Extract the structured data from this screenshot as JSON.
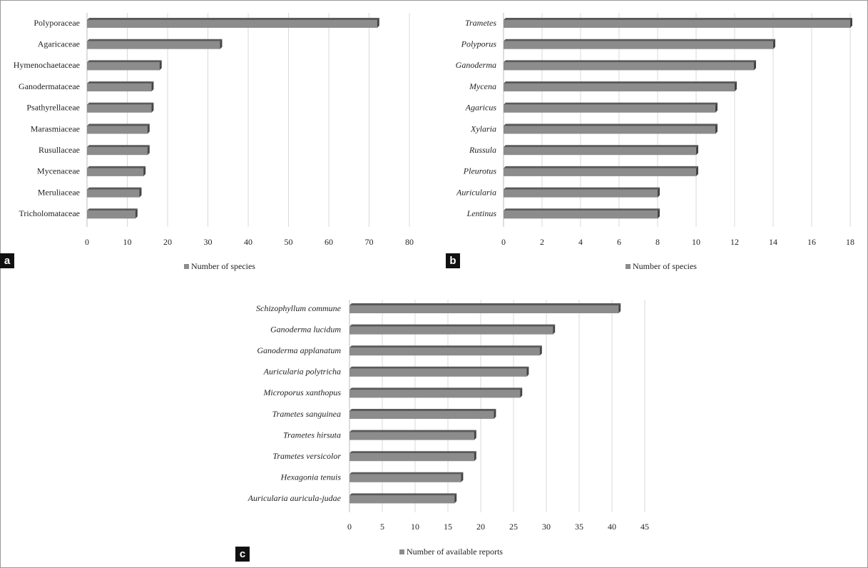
{
  "chart_data": [
    {
      "type": "bar",
      "label": "a",
      "categories": [
        "Polyporaceae",
        "Agaricaceae",
        "Hymenochaetaceae",
        "Ganodermataceae",
        "Psathyrellaceae",
        "Marasmiaceae",
        "Rusullaceae",
        "Mycenaceae",
        "Meruliaceae",
        "Tricholomataceae"
      ],
      "series": [
        {
          "name": "Number of species",
          "color": "#8c8c8c",
          "values": [
            72,
            33,
            18,
            16,
            16,
            15,
            15,
            14,
            13,
            12
          ]
        }
      ],
      "xlim": [
        0,
        80
      ],
      "xticks": [
        0,
        10,
        20,
        30,
        40,
        50,
        60,
        70,
        80
      ],
      "grid": true
    },
    {
      "type": "bar",
      "label": "b",
      "categories": [
        "Trametes",
        "Polyporus",
        "Ganoderma",
        "Mycena",
        "Agaricus",
        "Xylaria",
        "Russula",
        "Pleurotus",
        "Auricularia",
        "Lentinus"
      ],
      "series": [
        {
          "name": "Number of species",
          "color": "#8c8c8c",
          "values": [
            18,
            14,
            13,
            12,
            11,
            11,
            10,
            10,
            8,
            8
          ]
        }
      ],
      "xlim": [
        0,
        18
      ],
      "xticks": [
        0,
        2,
        4,
        6,
        8,
        10,
        12,
        14,
        16,
        18
      ],
      "grid": true
    },
    {
      "type": "bar",
      "label": "c",
      "categories": [
        "Schizophyllum commune",
        "Ganoderma lucidum",
        "Ganoderma applanatum",
        "Auricularia polytricha",
        "Microporus xanthopus",
        "Trametes sanguinea",
        "Trametes hirsuta",
        "Trametes versicolor",
        "Hexagonia tenuis",
        "Auricularia auricula-judae"
      ],
      "series": [
        {
          "name": "Number of available reports",
          "color": "#8c8c8c",
          "values": [
            41,
            31,
            29,
            27,
            26,
            22,
            19,
            19,
            17,
            16
          ]
        }
      ],
      "xlim": [
        0,
        45
      ],
      "xticks": [
        0,
        5,
        10,
        15,
        20,
        25,
        30,
        35,
        40,
        45
      ],
      "grid": true
    }
  ]
}
